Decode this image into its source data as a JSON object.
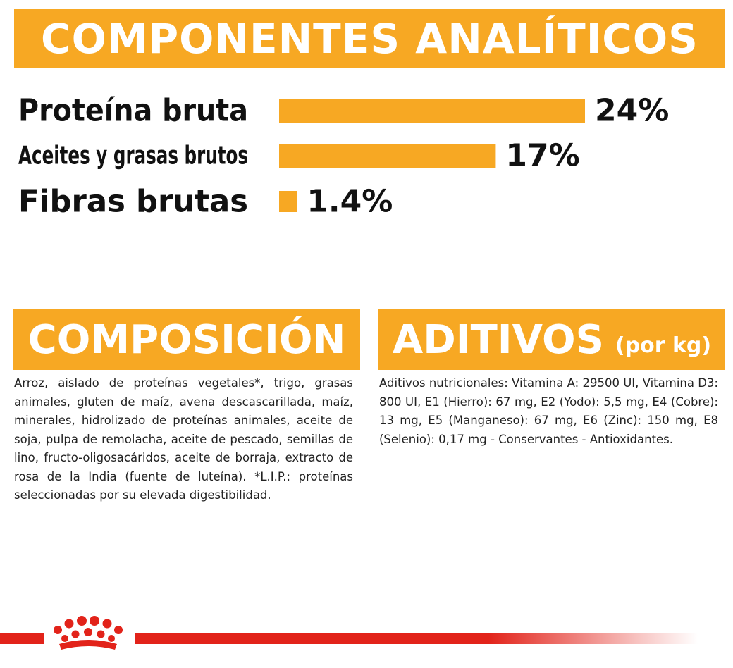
{
  "header": {
    "title": "COMPONENTES ANALÍTICOS"
  },
  "chart_data": {
    "type": "bar",
    "orientation": "horizontal",
    "categories": [
      "Proteína bruta",
      "Aceites y grasas brutos",
      "Fibras brutas"
    ],
    "values": [
      24,
      17,
      1.4
    ],
    "value_labels": [
      "24%",
      "17%",
      "1.4%"
    ],
    "unit": "%",
    "bar_color": "#f7a823"
  },
  "composicion": {
    "title": "COMPOSICIÓN",
    "text": "Arroz, aislado de proteínas vegetales*, trigo, grasas animales, gluten de maíz, avena descascarillada, maíz, minerales, hidrolizado de proteínas animales, aceite de soja, pulpa de remolacha, aceite de pescado, semillas de lino, fructo-oligosacáridos, aceite de borraja, extracto de rosa de la India (fuente de luteína). *L.I.P.: proteínas seleccionadas por su elevada digestibilidad."
  },
  "aditivos": {
    "title": "ADITIVOS",
    "subtitle": "(por kg)",
    "text": "Aditivos nutricionales: Vitamina A: 29500 UI, Vitamina D3: 800 UI, E1 (Hierro): 67 mg, E2 (Yodo): 5,5 mg, E4 (Cobre): 13 mg, E5 (Manganeso): 67 mg, E6 (Zinc): 150 mg, E8 (Selenio): 0,17 mg - Conservantes - Antioxidantes."
  },
  "colors": {
    "accent": "#f7a823",
    "brand_red": "#e2231a"
  },
  "footer": {
    "logo": "royal-crown-logo-icon"
  }
}
